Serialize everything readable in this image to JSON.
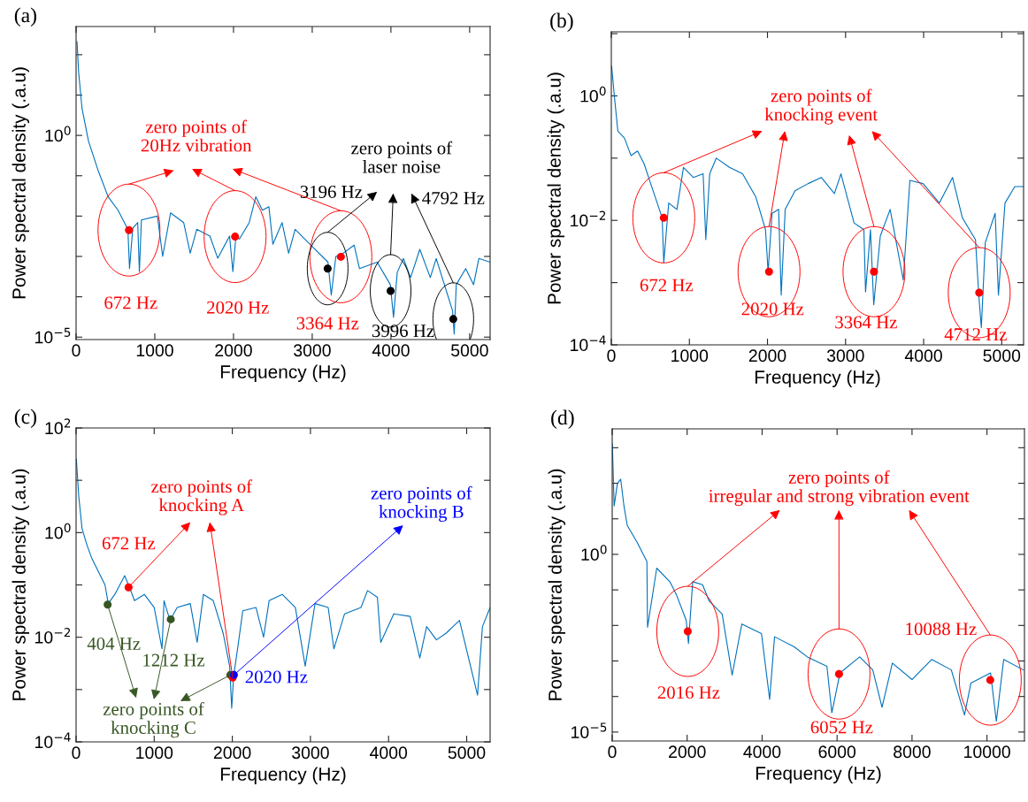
{
  "chart_data": [
    {
      "type": "line",
      "title": "(a)",
      "xlabel": "Frequency (Hz)",
      "ylabel": "Power spectral density (.a.u)",
      "log": "y",
      "xlim": [
        0,
        5260
      ],
      "ylim": [
        8.7e-06,
        500
      ],
      "xticks": [
        0,
        1000,
        2000,
        3000,
        4000,
        5000
      ],
      "yticks": [
        {
          "value": 1e-05,
          "label": "10$^{−5}$"
        },
        {
          "value": 0.0001,
          "label": null
        },
        {
          "value": 0.001,
          "label": null
        },
        {
          "value": 0.01,
          "label": null
        },
        {
          "value": 0.1,
          "label": null
        },
        {
          "value": 1,
          "label": "10$^{0}$"
        },
        {
          "value": 10,
          "label": null
        },
        {
          "value": 100,
          "label": null
        }
      ],
      "series": [
        {
          "color": "#0072bd",
          "x": [
            12,
            33,
            75,
            158,
            283,
            408,
            533,
            658,
            679,
            720,
            783,
            804,
            830,
            1033,
            1100,
            1200,
            1367,
            1450,
            1533,
            1700,
            1800,
            1950,
            1992,
            2030,
            2075,
            2200,
            2283,
            2367,
            2450,
            2500,
            2617,
            2700,
            2783,
            2950,
            3200,
            3242,
            3300,
            3367,
            3533,
            3600,
            3825,
            3992,
            4033,
            4080,
            4158,
            4250,
            4367,
            4500,
            4575,
            4783,
            4804,
            4830,
            4950,
            5050,
            5117,
            5260
          ],
          "values": [
            210,
            36,
            4.7,
            0.72,
            0.13,
            0.03,
            0.014,
            0.0047,
            0.0005,
            0.005,
            0.0069,
            0.00042,
            0.008,
            0.01,
            0.001,
            0.012,
            0.0069,
            0.0012,
            0.0047,
            0.0032,
            0.0009,
            0.0032,
            0.00042,
            0.003,
            0.0027,
            0.0069,
            0.03,
            0.014,
            0.017,
            0.002,
            0.0069,
            0.0012,
            0.0047,
            0.0022,
            0.00072,
            0.00011,
            0.001,
            0.0011,
            0.0019,
            0.0005,
            0.00072,
            0.0002,
            3.1e-05,
            0.0004,
            0.00089,
            0.0003,
            0.0015,
            0.0003,
            0.00089,
            4.5e-05,
            1.2e-05,
            0.0002,
            0.0005,
            0.0002,
            0.00089,
            0.00072
          ]
        },
        {
          "type": "scatter",
          "marker": "circle",
          "color": "#ff0000",
          "x": [
            672,
            2020,
            3364
          ],
          "values": [
            0.0045,
            0.0031,
            0.00098
          ]
        },
        {
          "type": "scatter",
          "marker": "circle",
          "color": "#000000",
          "x": [
            3196,
            3996,
            4792
          ],
          "values": [
            0.0005,
            0.00014,
            2.8e-05
          ]
        }
      ],
      "annotations": [
        "672 Hz",
        "2020 Hz",
        "3364 Hz",
        "3196 Hz",
        "3996 Hz",
        "4792 Hz",
        "zero points of\n20Hz vibration",
        "zero points of\nlaser noise"
      ]
    },
    {
      "type": "line",
      "title": "(b)",
      "xlabel": "Frequency (Hz)",
      "ylabel": "Power spectral density (.a.u)",
      "log": "y",
      "xlim": [
        0,
        5280
      ],
      "ylim": [
        0.0001,
        10.7
      ],
      "xticks": [
        0,
        1000,
        2000,
        3000,
        4000,
        5000
      ],
      "yticks": [
        {
          "value": 0.0001,
          "label": "10$^{−4}$"
        },
        {
          "value": 0.001,
          "label": null
        },
        {
          "value": 0.01,
          "label": "10$^{−2}$"
        },
        {
          "value": 0.1,
          "label": null
        },
        {
          "value": 1,
          "label": "10$^{0}$"
        },
        {
          "value": 10,
          "label": null
        }
      ],
      "series": [
        {
          "color": "#0072bd",
          "x": [
            4,
            42,
            84,
            168,
            252,
            336,
            420,
            504,
            588,
            651,
            672,
            735,
            840,
            924,
            1050,
            1176,
            1210,
            1260,
            1345,
            1513,
            1681,
            1849,
            1975,
            2008,
            2059,
            2143,
            2176,
            2227,
            2353,
            2521,
            2689,
            2857,
            2941,
            3109,
            3235,
            3256,
            3319,
            3361,
            3445,
            3571,
            3739,
            3824,
            3992,
            4202,
            4370,
            4496,
            4664,
            4706,
            4739,
            4790,
            4916,
            4958,
            5042,
            5168,
            5280
          ],
          "values": [
            3.0,
            0.91,
            0.27,
            0.21,
            0.11,
            0.13,
            0.081,
            0.039,
            0.019,
            0.011,
            0.0021,
            0.019,
            0.015,
            0.071,
            0.049,
            0.056,
            0.0049,
            0.056,
            0.1,
            0.071,
            0.056,
            0.024,
            0.0071,
            0.0015,
            0.013,
            0.015,
            0.00063,
            0.015,
            0.03,
            0.039,
            0.049,
            0.027,
            0.056,
            0.0091,
            0.0071,
            0.00071,
            0.0071,
            0.00044,
            0.0056,
            0.015,
            0.0011,
            0.044,
            0.039,
            0.019,
            0.049,
            0.011,
            0.0049,
            0.00063,
            0.00019,
            0.0044,
            0.013,
            0.00063,
            0.019,
            0.035,
            0.035
          ]
        },
        {
          "type": "scatter",
          "marker": "circle",
          "color": "#ff0000",
          "x": [
            672,
            2020,
            3364,
            4712
          ],
          "values": [
            0.011,
            0.0015,
            0.0015,
            0.00069
          ]
        }
      ],
      "annotations": [
        "672 Hz",
        "2020 Hz",
        "3364 Hz",
        "4712 Hz",
        "zero points of\nknocking event"
      ]
    },
    {
      "type": "line",
      "title": "(c)",
      "xlabel": "Frequency (Hz)",
      "ylabel": "Power spectral density (.a.u)",
      "log": "y",
      "xlim": [
        0,
        5300
      ],
      "ylim": [
        0.0001,
        100
      ],
      "xticks": [
        0,
        1000,
        2000,
        3000,
        4000,
        5000
      ],
      "yticks": [
        {
          "value": 0.0001,
          "label": "10$^{−4}$"
        },
        {
          "value": 0.001,
          "label": null
        },
        {
          "value": 0.01,
          "label": "10$^{−2}$"
        },
        {
          "value": 0.1,
          "label": null
        },
        {
          "value": 1,
          "label": "10$^{0}$"
        },
        {
          "value": 10,
          "label": null
        },
        {
          "value": 100,
          "label": "10$^{2}$"
        }
      ],
      "series": [
        {
          "color": "#0072bd",
          "x": [
            4,
            34,
            76,
            139,
            202,
            286,
            370,
            412,
            496,
            622,
            685,
            748,
            874,
            1000,
            1100,
            1126,
            1202,
            1294,
            1462,
            1550,
            1630,
            1756,
            1882,
            1966,
            1992,
            2017,
            2071,
            2134,
            2303,
            2400,
            2471,
            2639,
            2807,
            2933,
            3059,
            3227,
            3300,
            3437,
            3647,
            3731,
            3857,
            3900,
            4067,
            4277,
            4400,
            4487,
            4613,
            4739,
            4908,
            5139,
            5202,
            5300
          ],
          "values": [
            25,
            5.0,
            1.2,
            0.58,
            0.32,
            0.18,
            0.1,
            0.044,
            0.066,
            0.15,
            0.089,
            0.05,
            0.066,
            0.037,
            0.006,
            0.05,
            0.021,
            0.037,
            0.044,
            0.008,
            0.066,
            0.05,
            0.012,
            0.0028,
            0.00044,
            0.0018,
            0.0066,
            0.032,
            0.037,
            0.01,
            0.05,
            0.066,
            0.037,
            0.0028,
            0.044,
            0.037,
            0.006,
            0.028,
            0.037,
            0.078,
            0.058,
            0.008,
            0.028,
            0.025,
            0.004,
            0.016,
            0.0089,
            0.012,
            0.021,
            0.00078,
            0.016,
            0.037
          ]
        },
        {
          "type": "scatter",
          "marker": "circle",
          "color": "#375623",
          "x": [
            404,
            1212,
            1975
          ],
          "values": [
            0.042,
            0.022,
            0.0019
          ]
        },
        {
          "type": "scatter",
          "marker": "circle",
          "color": "#ff0000",
          "x": [
            672,
            2005
          ],
          "values": [
            0.09,
            0.0017
          ]
        },
        {
          "type": "scatter",
          "marker": "circle",
          "color": "#0000ff",
          "x": [
            2020
          ],
          "values": [
            0.0019
          ]
        }
      ],
      "annotations": [
        "672 Hz",
        "404 Hz",
        "1212 Hz",
        "2020 Hz",
        "zero points of\nknocking A",
        "zero points of\nknocking B",
        "zero points of\nknocking C"
      ]
    },
    {
      "type": "line",
      "title": "(d)",
      "xlabel": "Frequency (Hz)",
      "ylabel": "Power spectral density (.a.u)",
      "log": "y",
      "xlim": [
        0,
        11000
      ],
      "ylim": [
        5.6e-06,
        3400
      ],
      "xticks": [
        0,
        2000,
        4000,
        6000,
        8000,
        10000
      ],
      "yticks": [
        {
          "value": 1e-05,
          "label": "10$^{−5}$"
        },
        {
          "value": 0.0001,
          "label": null
        },
        {
          "value": 0.001,
          "label": null
        },
        {
          "value": 0.01,
          "label": null
        },
        {
          "value": 0.1,
          "label": null
        },
        {
          "value": 1,
          "label": "10$^{0}$"
        },
        {
          "value": 10,
          "label": null
        },
        {
          "value": 100,
          "label": null
        },
        {
          "value": 1000,
          "label": null
        }
      ],
      "series": [
        {
          "color": "#0072bd",
          "x": [
            4,
            52,
            140,
            227,
            314,
            402,
            664,
            926,
            943,
            1188,
            1537,
            1712,
            1974,
            2035,
            2148,
            2410,
            2585,
            2934,
            3200,
            3459,
            3983,
            4201,
            4332,
            4856,
            5205,
            5729,
            5860,
            6079,
            6603,
            6952,
            7200,
            7476,
            8000,
            8524,
            9048,
            9400,
            9572,
            10096,
            10250,
            10445,
            10970
          ],
          "values": [
            1300,
            23,
            100,
            130,
            23,
            6.5,
            2.2,
            0.63,
            0.0089,
            0.41,
            0.17,
            0.074,
            0.014,
            0.0031,
            0.17,
            0.14,
            0.049,
            0.021,
            0.0004,
            0.011,
            0.0059,
            8.3e-05,
            0.0048,
            0.0025,
            0.0013,
            0.00071,
            3.5e-05,
            0.00046,
            0.0013,
            0.00056,
            5e-05,
            0.00087,
            0.0003,
            0.0011,
            0.00056,
            3e-05,
            0.00024,
            0.00046,
            2e-05,
            0.0011,
            0.00056
          ]
        },
        {
          "type": "scatter",
          "marker": "circle",
          "color": "#ff0000",
          "x": [
            2016,
            6052,
            10088
          ],
          "values": [
            0.0068,
            0.00043,
            0.00029
          ]
        }
      ],
      "annotations": [
        "2016 Hz",
        "6052 Hz",
        "10088 Hz",
        "zero points of\nirregular and strong vibration event"
      ]
    }
  ]
}
